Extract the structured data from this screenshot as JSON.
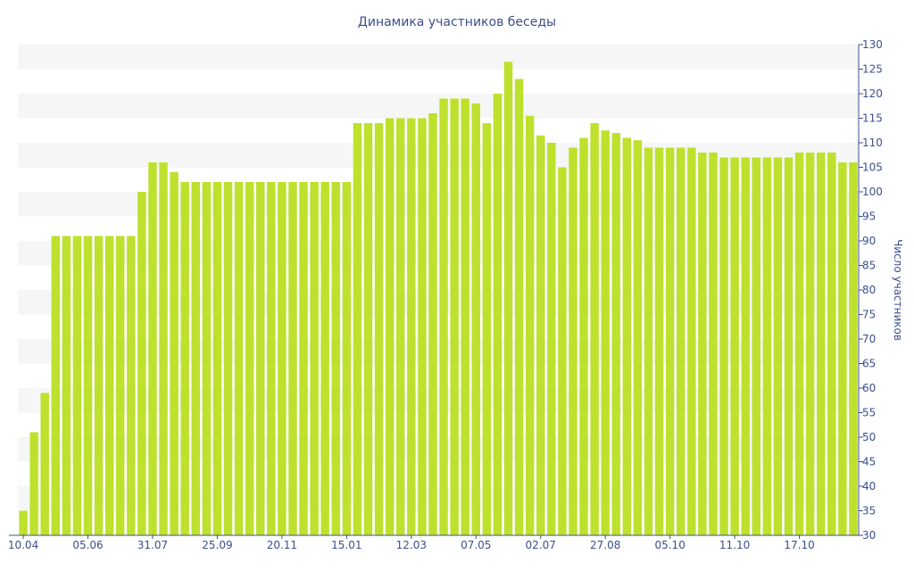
{
  "chart_data": {
    "type": "bar",
    "title": "Динамика участников беседы",
    "ylabel": "Число участников",
    "xlabel": "",
    "ylim": [
      30,
      130
    ],
    "y_ticks": [
      30,
      35,
      40,
      45,
      50,
      55,
      60,
      65,
      70,
      75,
      80,
      85,
      90,
      95,
      100,
      105,
      110,
      115,
      120,
      125,
      130
    ],
    "y_axis_position": "right",
    "grid": "alternating horizontal bands",
    "x_tick_labels": [
      {
        "index": 0,
        "label": "10.04"
      },
      {
        "index": 6,
        "label": "05.06"
      },
      {
        "index": 12,
        "label": "31.07"
      },
      {
        "index": 18,
        "label": "25.09"
      },
      {
        "index": 24,
        "label": "20.11"
      },
      {
        "index": 30,
        "label": "15.01"
      },
      {
        "index": 36,
        "label": "12.03"
      },
      {
        "index": 42,
        "label": "07.05"
      },
      {
        "index": 48,
        "label": "02.07"
      },
      {
        "index": 54,
        "label": "27.08"
      },
      {
        "index": 60,
        "label": "05.10"
      },
      {
        "index": 66,
        "label": "11.10"
      },
      {
        "index": 72,
        "label": "17.10"
      }
    ],
    "values": [
      35,
      51,
      59,
      91,
      91,
      91,
      91,
      91,
      91,
      91,
      91,
      100,
      106,
      106,
      104,
      102,
      102,
      102,
      102,
      102,
      102,
      102,
      102,
      102,
      102,
      102,
      102,
      102,
      102,
      102,
      102,
      114,
      114,
      114,
      115,
      115,
      115,
      115,
      116,
      119,
      119,
      119,
      118,
      114,
      120,
      126.5,
      123,
      115.5,
      111.5,
      110,
      105,
      109,
      111,
      114,
      112.5,
      112,
      111,
      110.5,
      109,
      109,
      109,
      109,
      109,
      108,
      108,
      107,
      107,
      107,
      107,
      107,
      107,
      107,
      108,
      108,
      108,
      108,
      106,
      106
    ],
    "colors": {
      "bar": "#bde12c",
      "band": "#f6f6f6",
      "text": "#3b4f8c",
      "axis": "#3b4f8c"
    }
  }
}
